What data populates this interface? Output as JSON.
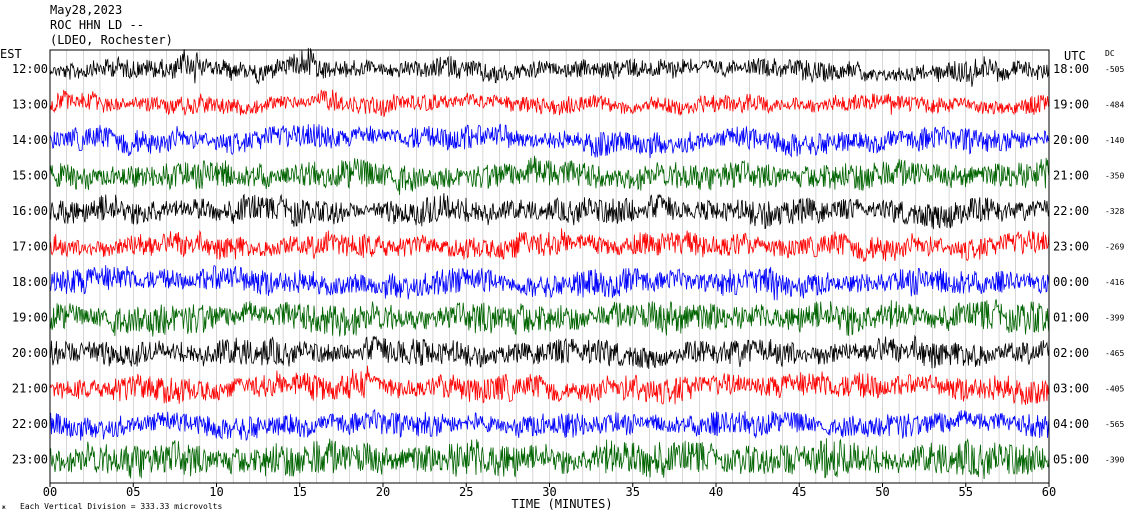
{
  "header": {
    "date": "May28,2023",
    "station": "ROC HHN LD --",
    "network": "(LDEO, Rochester)"
  },
  "footer": {
    "scale_note": "Each Vertical Division =  333.33 microvolts",
    "corner_mark": "ж"
  },
  "chart_data": {
    "type": "line",
    "title": "May28,2023 ROC HHN LD -- (LDEO, Rochester)",
    "xlabel": "TIME (MINUTES)",
    "x_ticks": [
      "00",
      "05",
      "10",
      "15",
      "20",
      "25",
      "30",
      "35",
      "40",
      "45",
      "50",
      "55",
      "60"
    ],
    "xlim": [
      0,
      60
    ],
    "grid": "vertical minute lines",
    "left_axis_label": "EST",
    "right_axis_label": "UTC",
    "dc_label": "DC",
    "trace_colors": [
      "#000000",
      "#ff0000",
      "#0000ff",
      "#006400"
    ],
    "traces": [
      {
        "est": "12:00",
        "utc": "18:00",
        "dc": "-505",
        "color": "#000000",
        "amplitude": 0.9,
        "events": [
          {
            "t": 8.5,
            "amp": 2.2
          },
          {
            "t": 10.8,
            "amp": 1.5
          },
          {
            "t": 15.5,
            "amp": 1.3
          },
          {
            "t": 55.6,
            "amp": 1.6
          }
        ]
      },
      {
        "est": "13:00",
        "utc": "19:00",
        "dc": "-484",
        "color": "#ff0000",
        "amplitude": 0.8,
        "events": [
          {
            "t": 2.5,
            "amp": 1.4
          },
          {
            "t": 16.5,
            "amp": 0.9
          }
        ]
      },
      {
        "est": "14:00",
        "utc": "20:00",
        "dc": "-140",
        "color": "#0000ff",
        "amplitude": 1.1,
        "events": []
      },
      {
        "est": "15:00",
        "utc": "21:00",
        "dc": "-350",
        "color": "#006400",
        "amplitude": 1.3,
        "events": []
      },
      {
        "est": "16:00",
        "utc": "22:00",
        "dc": "-328",
        "color": "#000000",
        "amplitude": 1.2,
        "events": []
      },
      {
        "est": "17:00",
        "utc": "23:00",
        "dc": "-269",
        "color": "#ff0000",
        "amplitude": 1.1,
        "events": []
      },
      {
        "est": "18:00",
        "utc": "00:00",
        "dc": "-416",
        "color": "#0000ff",
        "amplitude": 1.2,
        "events": [
          {
            "t": 42.5,
            "amp": 1.0
          }
        ]
      },
      {
        "est": "19:00",
        "utc": "01:00",
        "dc": "-399",
        "color": "#006400",
        "amplitude": 1.4,
        "events": []
      },
      {
        "est": "20:00",
        "utc": "02:00",
        "dc": "-465",
        "color": "#000000",
        "amplitude": 1.2,
        "events": []
      },
      {
        "est": "21:00",
        "utc": "03:00",
        "dc": "-405",
        "color": "#ff0000",
        "amplitude": 1.2,
        "events": [
          {
            "t": 19.0,
            "amp": 1.2
          }
        ]
      },
      {
        "est": "22:00",
        "utc": "04:00",
        "dc": "-565",
        "color": "#0000ff",
        "amplitude": 1.1,
        "events": []
      },
      {
        "est": "23:00",
        "utc": "05:00",
        "dc": "-390",
        "color": "#006400",
        "amplitude": 1.6,
        "events": [
          {
            "t": 46.7,
            "amp": 1.6
          }
        ]
      }
    ]
  }
}
